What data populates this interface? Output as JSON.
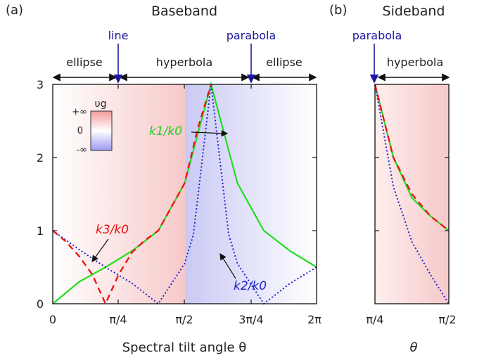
{
  "panel_a": {
    "label": "(a)",
    "title": "Baseband",
    "markers": [
      {
        "label": "line",
        "theta": "π/4"
      },
      {
        "label": "parabola",
        "theta": "3π/4"
      }
    ],
    "regions": [
      "ellipse",
      "hyperbola",
      "ellipse"
    ],
    "xlabel": "Spectral tilt angle θ",
    "xticks": [
      "0",
      "π/4",
      "π/2",
      "3π/4",
      "2π"
    ],
    "yticks": [
      "0",
      "1",
      "2",
      "3"
    ],
    "colorbar": {
      "title": "υg",
      "ticks": [
        "+∞",
        "0",
        "-∞"
      ]
    },
    "curve_labels": {
      "k1": "k1/k0",
      "k2": "k2/k0",
      "k3": "k3/k0"
    }
  },
  "panel_b": {
    "label": "(b)",
    "title": "Sideband",
    "markers": [
      {
        "label": "parabola",
        "theta": "π/4"
      }
    ],
    "regions": [
      "hyperbola"
    ],
    "xlabel": "θ",
    "xticks": [
      "π/4",
      "π/2"
    ]
  },
  "colors": {
    "k1": "#22dd22",
    "k2": "#2222cc",
    "k3": "#ee1111",
    "marker": "#1a1aa0",
    "pos": "#f8c8c8",
    "neg": "#c8c8f2"
  },
  "chart_data": [
    {
      "type": "line",
      "panel": "a",
      "x_range_rad": [
        0,
        2.356
      ],
      "ylim": [
        0,
        3
      ],
      "series": [
        {
          "name": "k1/k0",
          "x": [
            0,
            0.3927,
            0.7854,
            1.1781,
            1.5708,
            1.9635,
            2.0944,
            2.3562,
            2.618,
            2.7489,
            3.1416,
            3.5343,
            3.927
          ],
          "y": [
            0,
            0.3,
            0.5,
            0.72,
            1.0,
            1.65,
            2.1,
            3.0,
            2.1,
            1.65,
            1.0,
            0.72,
            0.5
          ]
        },
        {
          "name": "k2/k0",
          "x": [
            0,
            0.3927,
            0.7854,
            1.1781,
            1.5708,
            1.9635,
            2.0944,
            2.3562,
            2.618,
            2.7489,
            3.1416,
            3.5343,
            3.927
          ],
          "y": [
            1.0,
            0.74,
            0.5,
            0.28,
            0,
            0.55,
            0.95,
            3.0,
            0.95,
            0.55,
            0,
            0.28,
            0.5
          ]
        },
        {
          "name": "k3/k0",
          "x": [
            0,
            0.1963,
            0.3927,
            0.589,
            0.7854,
            0.9817,
            1.1781,
            1.3744,
            1.5708,
            1.9635,
            2.1598,
            2.3562
          ],
          "y": [
            1.0,
            0.85,
            0.65,
            0.4,
            0,
            0.4,
            0.7,
            0.87,
            1.0,
            1.65,
            2.4,
            3.0
          ]
        }
      ]
    },
    {
      "type": "line",
      "panel": "b",
      "ylim": [
        0,
        3
      ],
      "series": [
        {
          "name": "k1/k0",
          "x": [
            0.7854,
            0.9817,
            1.1781,
            1.3744,
            1.5708
          ],
          "y": [
            3.0,
            2.0,
            1.45,
            1.2,
            1.0
          ]
        },
        {
          "name": "k2/k0",
          "x": [
            0.7854,
            0.9817,
            1.1781,
            1.3744,
            1.5708
          ],
          "y": [
            3.0,
            1.6,
            0.85,
            0.4,
            0
          ]
        },
        {
          "name": "k3/k0",
          "x": [
            0.7854,
            0.9817,
            1.1781,
            1.3744,
            1.5708
          ],
          "y": [
            3.0,
            2.0,
            1.5,
            1.2,
            1.0
          ]
        }
      ]
    }
  ]
}
